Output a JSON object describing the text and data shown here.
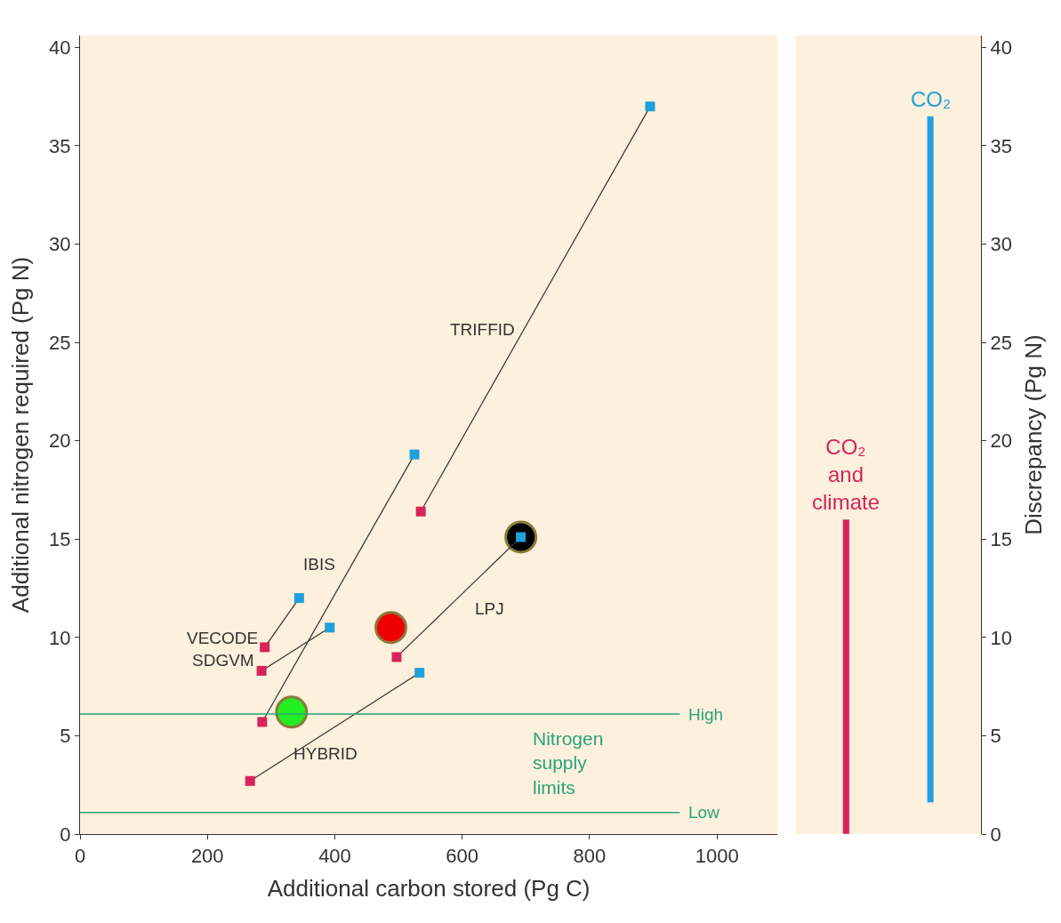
{
  "chart_data": [
    {
      "type": "line",
      "xlabel": "Additional carbon stored (Pg C)",
      "ylabel": "Additional nitrogen required (Pg N)",
      "xlim": [
        0,
        1095
      ],
      "xticks": [
        0,
        200,
        400,
        600,
        800,
        1000
      ],
      "ylim": [
        0,
        40.6
      ],
      "yticks": [
        0,
        5,
        10,
        15,
        20,
        25,
        30,
        35,
        40
      ],
      "grid": false,
      "legend": false,
      "marker": "square",
      "line_style": "solid",
      "series": [
        {
          "x": [
            535,
            895
          ],
          "values": [
            16.4,
            37.0
          ],
          "color": "#333333",
          "colors": [
            "#d6245a",
            "#1ea0dc"
          ]
        },
        {
          "x": [
            286,
            525
          ],
          "values": [
            5.7,
            19.3
          ],
          "color": "#333333",
          "colors": [
            "#d6245a",
            "#1ea0dc"
          ]
        },
        {
          "x": [
            290,
            344
          ],
          "values": [
            9.5,
            12.0
          ],
          "color": "#333333",
          "colors": [
            "#d6245a",
            "#1ea0dc"
          ]
        },
        {
          "x": [
            285,
            392
          ],
          "values": [
            8.3,
            10.5
          ],
          "color": "#333333",
          "colors": [
            "#d6245a",
            "#1ea0dc"
          ]
        },
        {
          "x": [
            267,
            533
          ],
          "values": [
            2.7,
            8.2
          ],
          "color": "#333333",
          "colors": [
            "#d6245a",
            "#1ea0dc"
          ]
        },
        {
          "x": [
            497,
            692
          ],
          "values": [
            9.0,
            15.1
          ],
          "color": "#333333",
          "colors": [
            "#d6245a",
            "#1ea0dc"
          ]
        },
        {
          "type": "scatter",
          "marker": "circle",
          "x": [
            332,
            488,
            692
          ],
          "values": [
            6.2,
            10.5,
            15.1
          ],
          "colors": [
            "#22ee22",
            "#ee0000",
            "#000000"
          ]
        }
      ],
      "ref_lines": [
        {
          "axis": "y",
          "value": 6.1,
          "label": "High",
          "color": "#2aa37a"
        },
        {
          "axis": "y",
          "value": 1.1,
          "label": "Low",
          "color": "#2aa37a"
        }
      ],
      "annotations": [
        "TRIFFID",
        "IBIS",
        "VECODE",
        "SDGVM",
        "HYBRID",
        "LPJ",
        "Nitrogen supply limits"
      ]
    },
    {
      "type": "bar",
      "ylabel": "Discrepancy (Pg N)",
      "categories": [
        "CO₂ and climate",
        "CO₂"
      ],
      "base": [
        0,
        1.6
      ],
      "values": [
        16.0,
        34.9
      ],
      "colors": [
        "#d6245a",
        "#1ea0dc"
      ],
      "ylim": [
        0,
        40.6
      ],
      "yticks": [
        0,
        5,
        10,
        15,
        20,
        25,
        30,
        35,
        40
      ],
      "tick_labels": "y",
      "grid": false,
      "legend": false
    }
  ]
}
